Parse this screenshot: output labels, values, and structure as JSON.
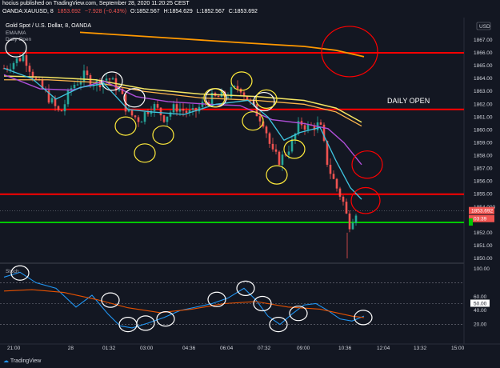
{
  "publisher_line": "hocius published on TradingView.com, September 28, 2020 11:20:25 CEST",
  "ohlc": {
    "symbol": "OANDA:XAUUSD, 8",
    "last": "1853.692",
    "change": "−7.928 (−0.43%)",
    "open": "O:1852.567",
    "high": "H:1854.629",
    "low": "L:1852.567",
    "close": "C:1853.692"
  },
  "chart_title": "Gold Spot / U.S. Dollar, 8, OANDA",
  "indicators": {
    "ema": "EMA/MA",
    "daily_open": "Daily Open",
    "stoch": "Stoch"
  },
  "currency_badge": "USD",
  "annotation": "DAILY OPEN",
  "price_axis": [
    "1867.00",
    "1866.00",
    "1865.00",
    "1864.00",
    "1863.00",
    "1862.00",
    "1861.00",
    "1860.00",
    "1859.00",
    "1858.00",
    "1857.00",
    "1856.00",
    "1855.00",
    "1854.000",
    "1852.00",
    "1851.00",
    "1850.00"
  ],
  "price_badges": {
    "current": "1853.692",
    "countdown": "03:39"
  },
  "stoch_axis": [
    "100.00",
    "60.00",
    "40.00",
    "20.00"
  ],
  "stoch_badge": "50.00",
  "time_axis": [
    "21:00",
    "28",
    "01:32",
    "03:00",
    "04:36",
    "06:04",
    "07:32",
    "09:00",
    "10:36",
    "12:04",
    "13:32",
    "15:00"
  ],
  "brand": "TradingView",
  "colors": {
    "background": "#131722",
    "up": "#26a69a",
    "down": "#ef5350",
    "level_red": "#ff0000",
    "level_green": "#00c800",
    "ema_orange": "#ff9800",
    "ema_yellow": "#f5e663",
    "ema_purple": "#b04fd8",
    "ema_cyan": "#3fc5e0",
    "circle_white": "#ffffff",
    "circle_yellow": "#ffeb3b",
    "stoch_k": "#2196f3",
    "stoch_d": "#e65100"
  },
  "chart_data": {
    "type": "candlestick",
    "symbol": "OANDA:XAUUSD",
    "interval": "8",
    "y_range": [
      1849.8,
      1867.9
    ],
    "horizontal_levels": [
      {
        "price": 1866.0,
        "color": "red"
      },
      {
        "price": 1861.6,
        "color": "red",
        "label": "DAILY OPEN"
      },
      {
        "price": 1855.0,
        "color": "red"
      },
      {
        "price": 1852.8,
        "color": "green"
      }
    ],
    "last_price": 1853.692,
    "stoch_levels": [
      80,
      50,
      20
    ]
  }
}
